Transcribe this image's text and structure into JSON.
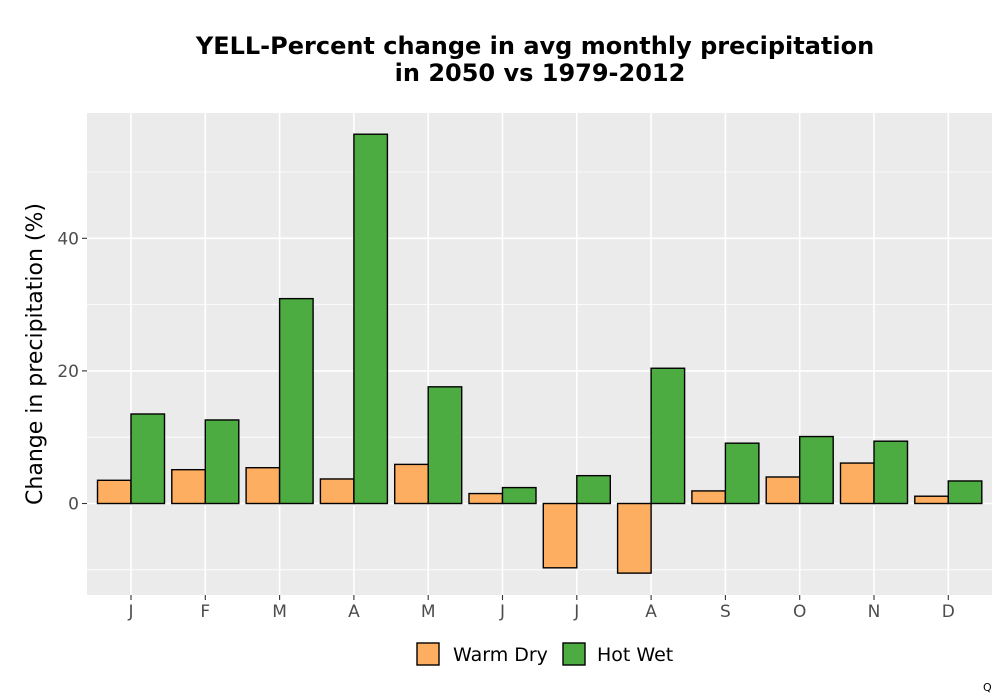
{
  "chart_data": {
    "type": "bar",
    "title_line1": "YELL-Percent change in avg monthly precipitation",
    "title_line2": "in 2050 vs 1979-2012",
    "xlabel": "",
    "ylabel": "Change in precipitation (%)",
    "categories": [
      "J",
      "F",
      "M",
      "A",
      "M",
      "J",
      "J",
      "A",
      "S",
      "O",
      "N",
      "D"
    ],
    "series": [
      {
        "name": "Warm Dry",
        "color": "#FDAE61",
        "values": [
          3.5,
          5.1,
          5.4,
          3.7,
          5.9,
          1.5,
          -9.7,
          -10.5,
          1.9,
          4.0,
          6.1,
          1.1
        ]
      },
      {
        "name": "Hot Wet",
        "color": "#4DAC41",
        "values": [
          13.5,
          12.6,
          30.9,
          55.7,
          17.6,
          2.4,
          4.2,
          20.4,
          9.1,
          10.1,
          9.4,
          3.4
        ]
      }
    ],
    "yticks": [
      0,
      20,
      40
    ],
    "ylim": [
      -13.8,
      58.9
    ],
    "grid": true,
    "legend_position": "bottom",
    "panel_background": "#EBEBEB",
    "bar_outline": "#000000"
  },
  "corner_mark": "Q"
}
